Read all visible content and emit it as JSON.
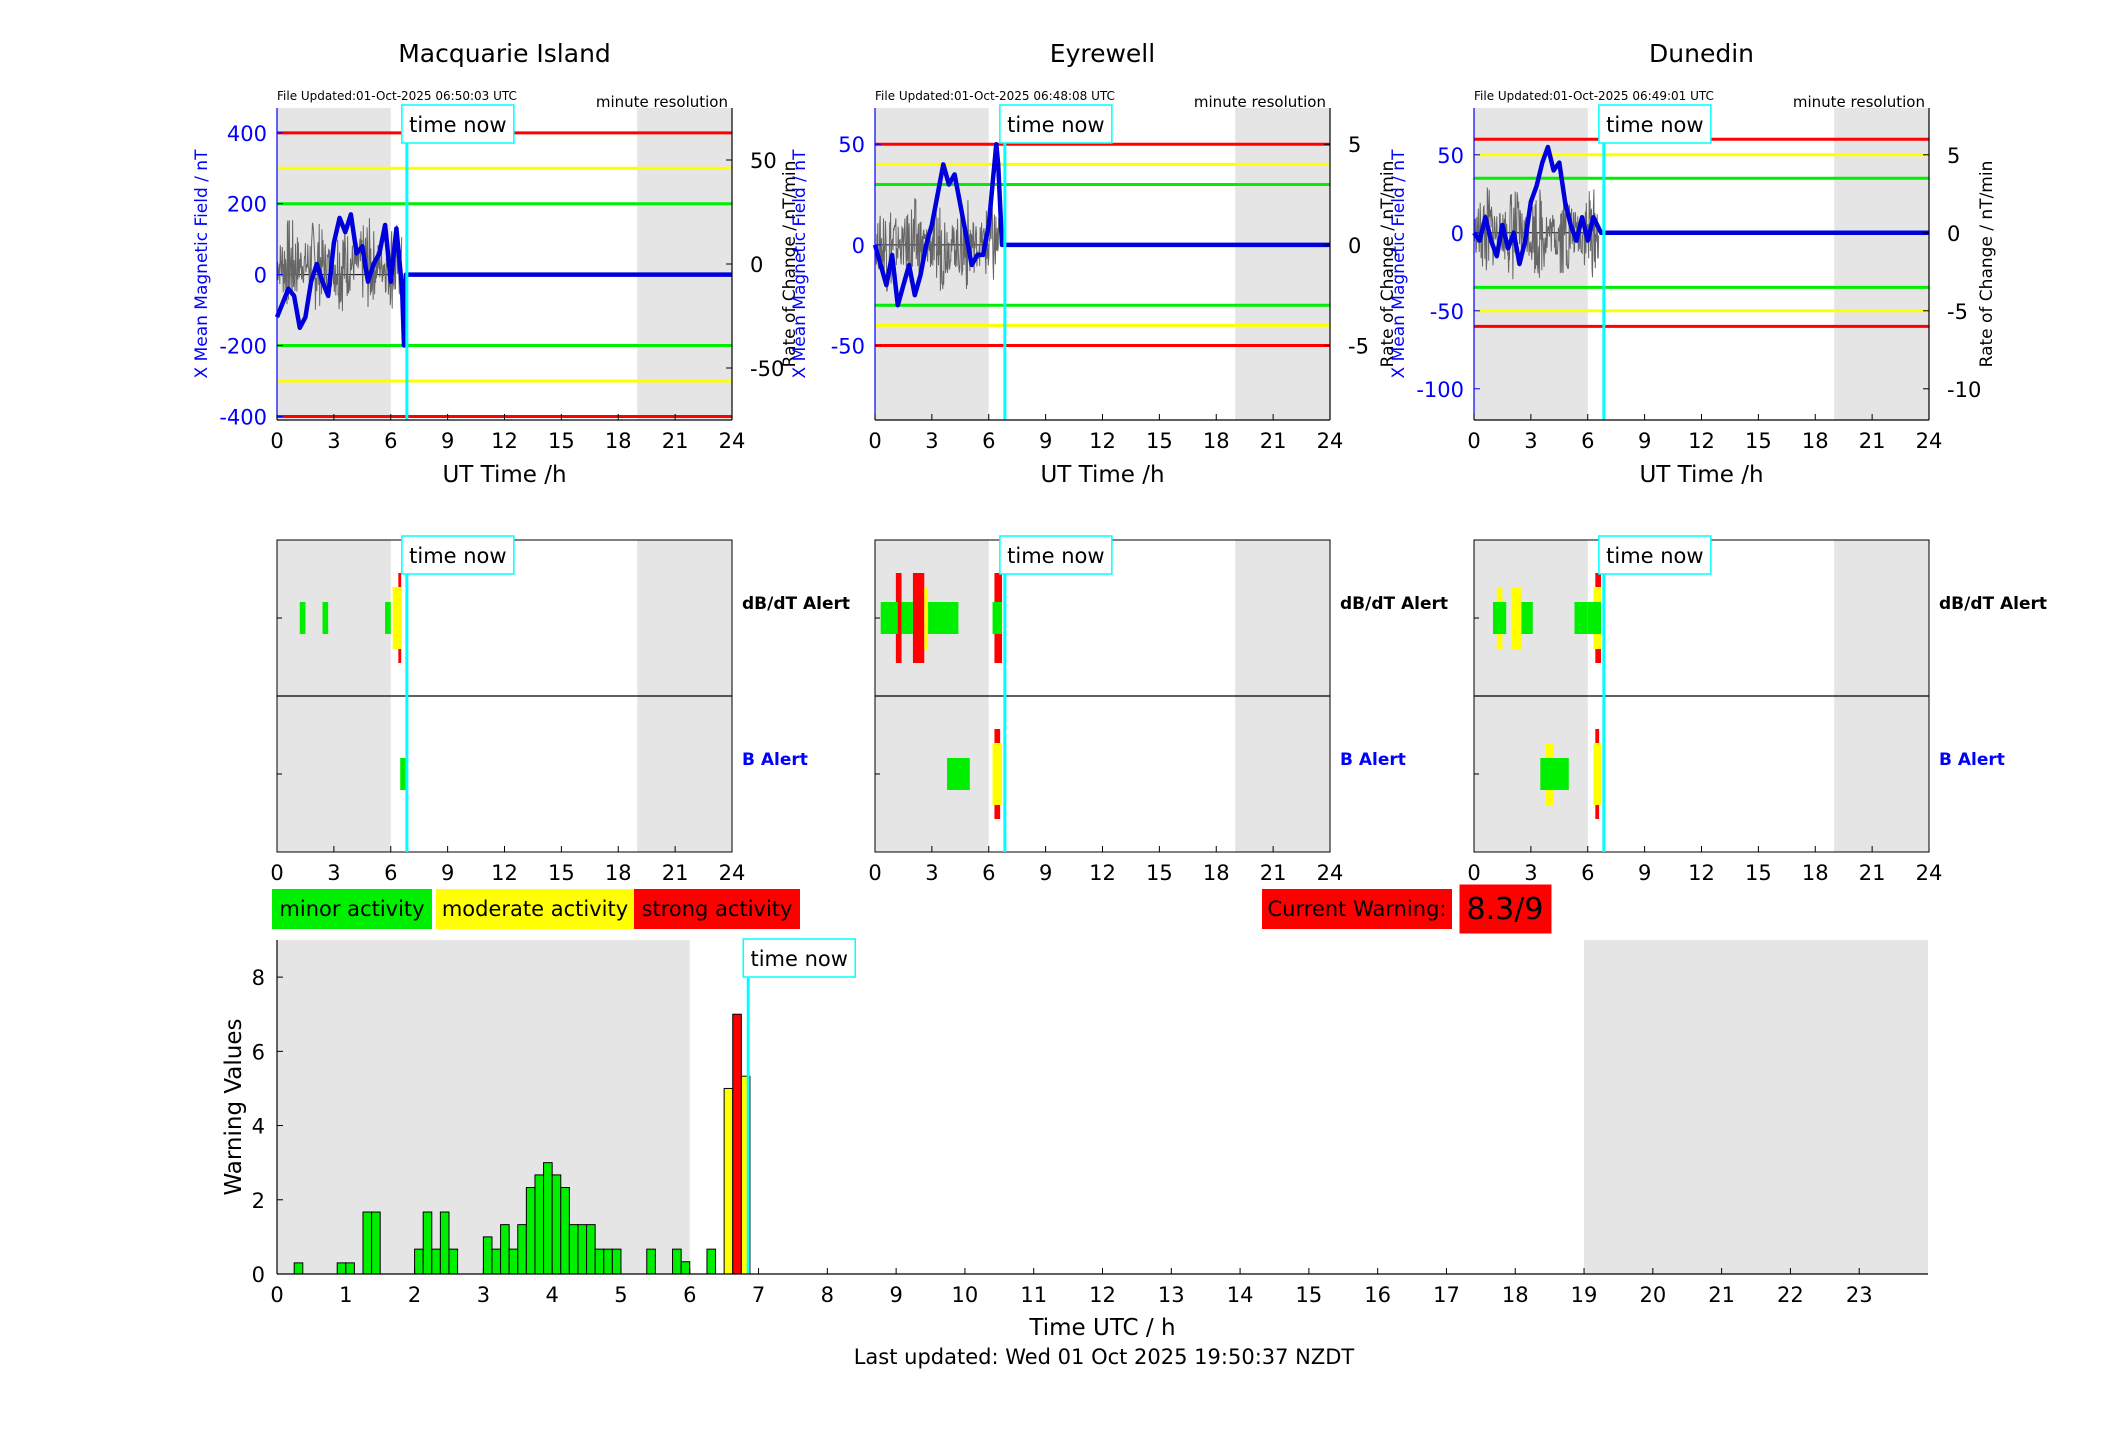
{
  "stations": [
    {
      "name": "Macquarie Island",
      "file_updated": "File Updated:01-Oct-2025 06:50:03 UTC",
      "resolution": "minute resolution",
      "ylabel_left": "X Mean Magnetic Field / nT",
      "ylabel_right": "Rate of Change / nT/min",
      "xlabel": "UT Time /h",
      "left_ticks": [
        "-400",
        "-200",
        "0",
        "200",
        "400"
      ],
      "right_ticks": [
        "-50",
        "0",
        "50"
      ],
      "x_ticks": [
        "0",
        "3",
        "6",
        "9",
        "12",
        "15",
        "18",
        "21",
        "24"
      ],
      "time_now_label": "time now"
    },
    {
      "name": "Eyrewell",
      "file_updated": "File Updated:01-Oct-2025 06:48:08 UTC",
      "resolution": "minute resolution",
      "ylabel_left": "X Mean Magnetic Field / nT",
      "ylabel_right": "Rate of Change / nT/min",
      "xlabel": "UT Time /h",
      "left_ticks": [
        "-50",
        "0",
        "50"
      ],
      "right_ticks": [
        "-5",
        "0",
        "5"
      ],
      "x_ticks": [
        "0",
        "3",
        "6",
        "9",
        "12",
        "15",
        "18",
        "21",
        "24"
      ],
      "time_now_label": "time now"
    },
    {
      "name": "Dunedin",
      "file_updated": "File Updated:01-Oct-2025 06:49:01 UTC",
      "resolution": "minute resolution",
      "ylabel_left": "X Mean Magnetic Field / nT",
      "ylabel_right": "Rate of Change / nT/min",
      "xlabel": "UT Time /h",
      "left_ticks": [
        "-100",
        "-50",
        "0",
        "50"
      ],
      "right_ticks": [
        "-10",
        "-5",
        "0",
        "5"
      ],
      "x_ticks": [
        "0",
        "3",
        "6",
        "9",
        "12",
        "15",
        "18",
        "21",
        "24"
      ],
      "time_now_label": "time now"
    }
  ],
  "alert_labels": {
    "dbdt": "dB/dT Alert",
    "b": "B Alert"
  },
  "legend": {
    "minor": "minor activity",
    "moderate": "moderate activity",
    "strong": "strong activity"
  },
  "current_warning": {
    "label": "Current Warning:",
    "value": "8.3/9"
  },
  "bottom": {
    "ylabel": "Warning Values",
    "xlabel": "Time UTC / h",
    "y_ticks": [
      "0",
      "2",
      "4",
      "6",
      "8"
    ],
    "x_ticks": [
      "0",
      "1",
      "2",
      "3",
      "4",
      "5",
      "6",
      "7",
      "8",
      "9",
      "10",
      "11",
      "12",
      "13",
      "14",
      "15",
      "16",
      "17",
      "18",
      "19",
      "20",
      "21",
      "22",
      "23"
    ],
    "time_now_label": "time now"
  },
  "footer": "Last updated: Wed 01 Oct 2025 19:50:37 NZDT",
  "colors": {
    "minor": "#00ee00",
    "moderate": "#ffff00",
    "strong": "#ff0000",
    "mean_field": "#0000dd",
    "time_now": "#00ffff",
    "night_shade": "#e5e5e5"
  },
  "chart_data": [
    {
      "type": "line",
      "title": "Macquarie Island",
      "xlabel": "UT Time /h",
      "ylabel": "X Mean Magnetic Field / nT",
      "ylabel_right": "Rate of Change / nT/min",
      "xlim": [
        0,
        24
      ],
      "ylim": [
        -410,
        470
      ],
      "ylim_right": [
        -75,
        75
      ],
      "thresholds_nT": {
        "red": 400,
        "yellow": 300,
        "green": 200
      },
      "night_shading_h": [
        [
          0,
          6
        ],
        [
          19,
          24
        ]
      ],
      "time_now_h": 6.85,
      "series": [
        {
          "name": "X Mean Magnetic Field / nT",
          "x": [
            0,
            0.3,
            0.6,
            0.9,
            1.2,
            1.5,
            1.8,
            2.1,
            2.4,
            2.7,
            3,
            3.3,
            3.6,
            3.9,
            4.2,
            4.5,
            4.8,
            5.1,
            5.4,
            5.7,
            6,
            6.3,
            6.6,
            6.7,
            6.8,
            24
          ],
          "y": [
            -120,
            -80,
            -40,
            -60,
            -150,
            -120,
            -20,
            30,
            -20,
            -60,
            90,
            160,
            120,
            170,
            60,
            80,
            -20,
            30,
            60,
            140,
            -20,
            130,
            -40,
            -200,
            0,
            0
          ]
        }
      ]
    },
    {
      "type": "line",
      "title": "Eyrewell",
      "xlabel": "UT Time /h",
      "ylabel": "X Mean Magnetic Field / nT",
      "ylabel_right": "Rate of Change / nT/min",
      "xlim": [
        0,
        24
      ],
      "ylim": [
        -87,
        68
      ],
      "ylim_right": [
        -8.7,
        6.8
      ],
      "thresholds_nT": {
        "red": 50,
        "yellow": 40,
        "green": 30
      },
      "night_shading_h": [
        [
          0,
          6
        ],
        [
          19,
          24
        ]
      ],
      "time_now_h": 6.85,
      "series": [
        {
          "name": "X Mean Magnetic Field / nT",
          "x": [
            0,
            0.3,
            0.6,
            0.9,
            1.2,
            1.5,
            1.8,
            2.1,
            2.4,
            2.7,
            3,
            3.3,
            3.6,
            3.9,
            4.2,
            4.5,
            4.8,
            5.1,
            5.4,
            5.7,
            6,
            6.2,
            6.4,
            6.5,
            6.7,
            24
          ],
          "y": [
            0,
            -10,
            -20,
            -5,
            -30,
            -20,
            -10,
            -25,
            -15,
            0,
            10,
            25,
            40,
            30,
            35,
            20,
            5,
            -10,
            -5,
            -5,
            10,
            30,
            50,
            40,
            0,
            0
          ]
        }
      ]
    },
    {
      "type": "line",
      "title": "Dunedin",
      "xlabel": "UT Time /h",
      "ylabel": "X Mean Magnetic Field / nT",
      "ylabel_right": "Rate of Change / nT/min",
      "xlim": [
        0,
        24
      ],
      "ylim": [
        -120,
        80
      ],
      "ylim_right": [
        -12,
        8
      ],
      "thresholds_nT": {
        "red": [
          60,
          -60
        ],
        "yellow": [
          50,
          -50
        ],
        "green": [
          35,
          -35
        ]
      },
      "night_shading_h": [
        [
          0,
          6
        ],
        [
          19,
          24
        ]
      ],
      "time_now_h": 6.85,
      "series": [
        {
          "name": "X Mean Magnetic Field / nT",
          "x": [
            0,
            0.3,
            0.6,
            0.9,
            1.2,
            1.5,
            1.8,
            2.1,
            2.4,
            2.7,
            3,
            3.3,
            3.6,
            3.9,
            4.2,
            4.5,
            4.8,
            5.1,
            5.4,
            5.7,
            6,
            6.3,
            6.5,
            6.7,
            24
          ],
          "y": [
            0,
            -5,
            10,
            -5,
            -15,
            5,
            -10,
            0,
            -20,
            -5,
            20,
            30,
            45,
            55,
            40,
            45,
            20,
            5,
            -5,
            10,
            -5,
            10,
            5,
            0,
            0
          ]
        }
      ]
    },
    {
      "type": "bar",
      "title": "",
      "xlabel": "Time UTC / h",
      "ylabel": "Warning Values",
      "xlim": [
        0,
        24
      ],
      "ylim": [
        0,
        9
      ],
      "night_shading_h": [
        [
          0,
          6
        ],
        [
          19,
          24
        ]
      ],
      "time_now_h": 6.85,
      "bins_h": 0.125,
      "x": [
        0.25,
        0.875,
        1,
        1.25,
        1.375,
        2,
        2.125,
        2.25,
        2.375,
        2.5,
        3,
        3.125,
        3.25,
        3.375,
        3.5,
        3.625,
        3.75,
        3.875,
        4,
        4.125,
        4.25,
        4.375,
        4.5,
        4.625,
        4.75,
        4.875,
        5.375,
        5.75,
        5.875,
        6.25,
        6.5,
        6.625,
        6.75
      ],
      "values": [
        0.3,
        0.3,
        0.3,
        1.67,
        1.67,
        0.67,
        1.67,
        0.67,
        1.67,
        0.67,
        1,
        0.67,
        1.33,
        0.67,
        1.33,
        2.33,
        2.67,
        3,
        2.67,
        2.33,
        1.33,
        1.33,
        1.33,
        0.67,
        0.67,
        0.67,
        0.67,
        0.67,
        0.33,
        0.67,
        5,
        7,
        5.33
      ],
      "levels": [
        "minor",
        "minor",
        "minor",
        "minor",
        "minor",
        "minor",
        "minor",
        "minor",
        "minor",
        "minor",
        "minor",
        "minor",
        "minor",
        "minor",
        "minor",
        "minor",
        "minor",
        "minor",
        "minor",
        "minor",
        "minor",
        "minor",
        "minor",
        "minor",
        "minor",
        "minor",
        "minor",
        "minor",
        "minor",
        "minor",
        "moderate",
        "strong",
        "moderate"
      ]
    }
  ],
  "alerts": [
    {
      "dbdt": [
        [
          1.2,
          1.5,
          "minor"
        ],
        [
          2.4,
          2.7,
          "minor"
        ],
        [
          5.7,
          6,
          "minor"
        ],
        [
          6.1,
          6.55,
          "moderate"
        ],
        [
          6.4,
          6.55,
          "strong"
        ]
      ],
      "b": [
        [
          6.5,
          6.8,
          "minor"
        ]
      ]
    },
    {
      "dbdt": [
        [
          0.3,
          1.2,
          "minor"
        ],
        [
          1.1,
          1.4,
          "strong"
        ],
        [
          1.4,
          2,
          "minor"
        ],
        [
          2,
          2.6,
          "strong"
        ],
        [
          2.6,
          2.8,
          "moderate"
        ],
        [
          2.8,
          4.4,
          "minor"
        ],
        [
          6.2,
          6.7,
          "minor"
        ],
        [
          6.3,
          6.7,
          "strong"
        ]
      ],
      "b": [
        [
          3.8,
          5,
          "minor"
        ],
        [
          6.2,
          6.7,
          "moderate"
        ],
        [
          6.3,
          6.6,
          "strong"
        ]
      ]
    },
    {
      "dbdt": [
        [
          1,
          1.7,
          "minor"
        ],
        [
          1.2,
          1.5,
          "moderate"
        ],
        [
          2,
          2.5,
          "moderate"
        ],
        [
          2.5,
          3.1,
          "minor"
        ],
        [
          5.3,
          6,
          "minor"
        ],
        [
          6,
          6.7,
          "minor"
        ],
        [
          6.3,
          6.7,
          "moderate"
        ],
        [
          6.4,
          6.7,
          "strong"
        ]
      ],
      "b": [
        [
          3.5,
          5,
          "minor"
        ],
        [
          3.8,
          4.2,
          "moderate"
        ],
        [
          6.3,
          6.7,
          "moderate"
        ],
        [
          6.4,
          6.6,
          "strong"
        ]
      ]
    }
  ]
}
